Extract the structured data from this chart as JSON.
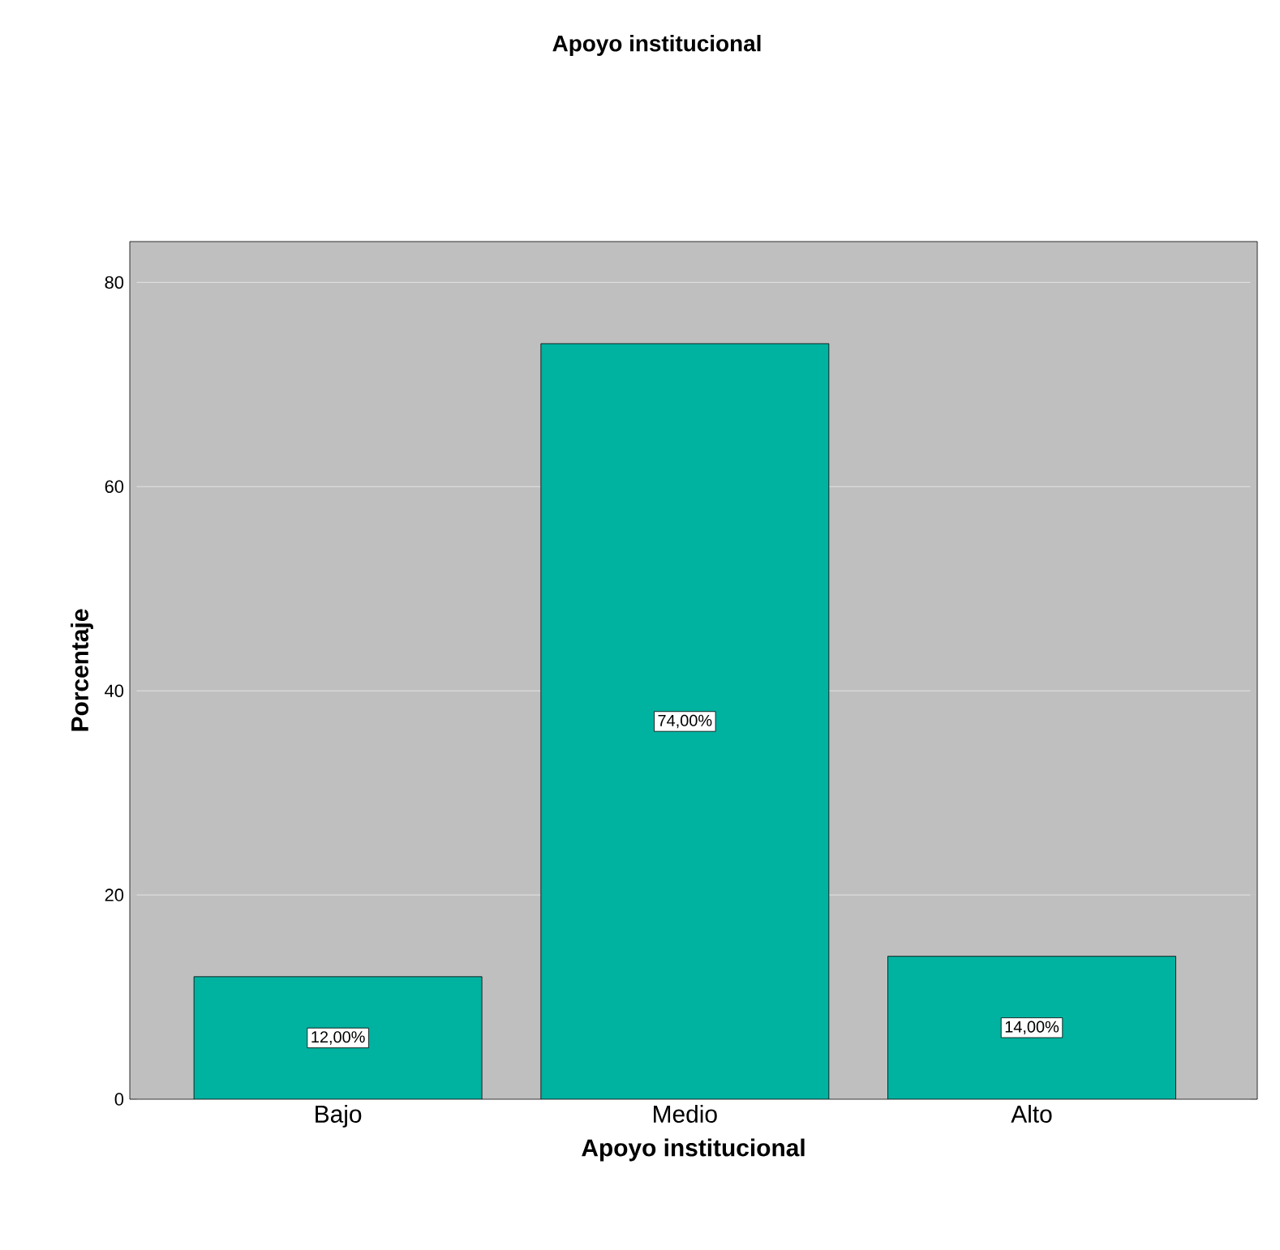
{
  "chart_data": {
    "type": "bar",
    "title": "Apoyo institucional",
    "xlabel": "Apoyo institucional",
    "ylabel": "Porcentaje",
    "categories": [
      "Bajo",
      "Medio",
      "Alto"
    ],
    "values": [
      12,
      74,
      14
    ],
    "value_labels": [
      "12,00%",
      "74,00%",
      "14,00%"
    ],
    "color": "#00b2a0",
    "ylim": [
      0,
      84
    ],
    "yticks": [
      0,
      20,
      40,
      60,
      80
    ],
    "grid": "y"
  }
}
